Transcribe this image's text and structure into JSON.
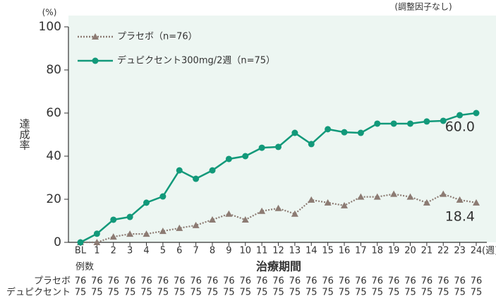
{
  "chart_data": {
    "type": "line",
    "note": "(調整因子なし)",
    "y_unit": "(%)",
    "y_label": "達成率",
    "x_label": "治療期間",
    "x_unit": "(週)",
    "categories": [
      "BL",
      "1",
      "2",
      "3",
      "4",
      "5",
      "6",
      "7",
      "8",
      "9",
      "10",
      "11",
      "12",
      "13",
      "14",
      "15",
      "16",
      "17",
      "18",
      "19",
      "20",
      "21",
      "22",
      "23",
      "24"
    ],
    "series": [
      {
        "name": "プラセボ（n=76）",
        "color": "#8c7b73",
        "marker": "triangle",
        "dash": true,
        "values": [
          0,
          0,
          2.6,
          3.9,
          3.9,
          5.2,
          6.6,
          7.9,
          10.5,
          13.2,
          10.5,
          14.5,
          15.8,
          13.2,
          19.7,
          18.4,
          17.1,
          21.1,
          21.1,
          22.4,
          21.1,
          18.4,
          22.4,
          19.7,
          18.4
        ],
        "value_labels": [
          null,
          null,
          null,
          null,
          null,
          null,
          null,
          null,
          null,
          null,
          null,
          null,
          null,
          null,
          null,
          null,
          null,
          null,
          null,
          null,
          null,
          null,
          null,
          null,
          "18.4"
        ]
      },
      {
        "name": "デュピクセント300mg/2週（n=75）",
        "color": "#12997a",
        "marker": "circle",
        "dash": false,
        "values": [
          0,
          4,
          10.5,
          11.8,
          18.4,
          21.3,
          33.4,
          29.5,
          33.4,
          38.7,
          40,
          43.9,
          44.3,
          50.8,
          45.6,
          52.5,
          51.1,
          50.8,
          55.1,
          55.1,
          55.1,
          56.1,
          56.4,
          59,
          60
        ],
        "value_labels": [
          null,
          null,
          null,
          null,
          null,
          null,
          null,
          null,
          null,
          null,
          null,
          null,
          null,
          null,
          null,
          null,
          null,
          null,
          null,
          null,
          null,
          null,
          null,
          null,
          "60.0"
        ]
      }
    ],
    "ylim": [
      0,
      100
    ],
    "yticks": [
      0,
      20,
      40,
      60,
      80,
      100
    ],
    "n_table": {
      "title": "例数",
      "rows": [
        {
          "label": "プラセボ",
          "values": [
            76,
            76,
            76,
            76,
            76,
            76,
            76,
            76,
            76,
            76,
            76,
            76,
            76,
            76,
            76,
            76,
            76,
            76,
            76,
            76,
            76,
            76,
            76,
            76,
            76
          ]
        },
        {
          "label": "デュピクセント",
          "values": [
            75,
            75,
            75,
            75,
            75,
            75,
            75,
            75,
            75,
            75,
            75,
            75,
            75,
            75,
            75,
            75,
            75,
            75,
            75,
            75,
            75,
            75,
            75,
            75,
            75
          ]
        }
      ]
    }
  }
}
